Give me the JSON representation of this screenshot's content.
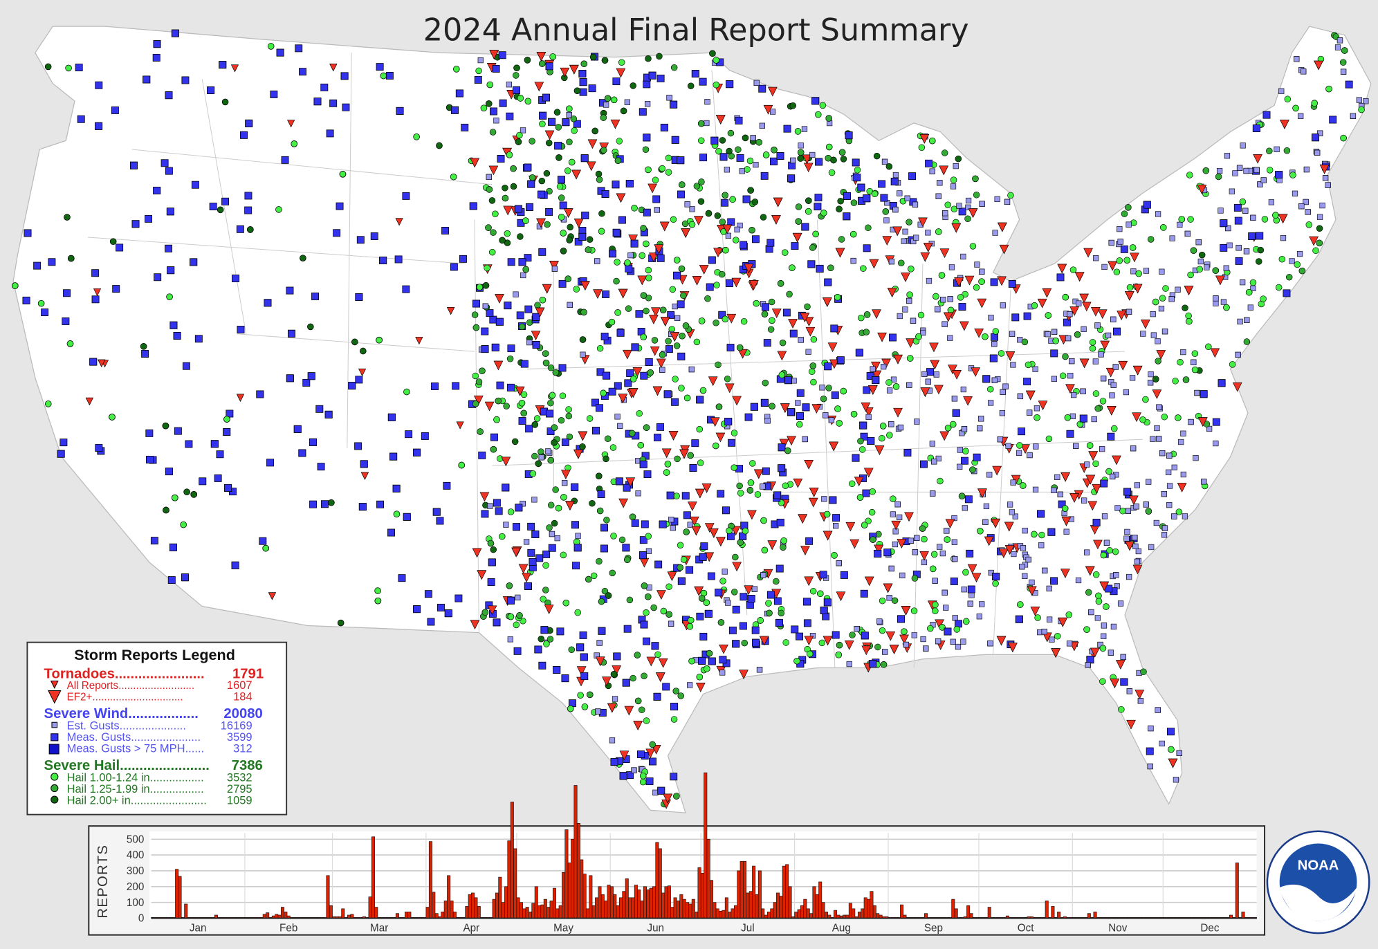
{
  "title": "2024 Annual Final Report Summary",
  "colors": {
    "tornado": "#ee3322",
    "wind_est": "#9999ee",
    "wind_meas": "#3333ee",
    "wind_75": "#1111cc",
    "hail_small": "#44ee44",
    "hail_mid": "#33aa33",
    "hail_big": "#116611",
    "bar": "#dd2200"
  },
  "legend": {
    "title": "Storm Reports Legend",
    "tornadoes": {
      "label": "Tornadoes.......................",
      "total": "1791",
      "items": [
        {
          "label": "All Reports..........................",
          "value": "1607",
          "icon": "small-triangle-icon"
        },
        {
          "label": "EF2+...............................",
          "value": "184",
          "icon": "large-triangle-icon"
        }
      ]
    },
    "wind": {
      "label": "Severe Wind..................",
      "total": "20080",
      "items": [
        {
          "label": "Est. Gusts.....................",
          "value": "16169",
          "icon": "small-square-icon"
        },
        {
          "label": "Meas. Gusts......................",
          "value": "3599",
          "icon": "square-icon"
        },
        {
          "label": "Meas. Gusts > 75 MPH......",
          "value": "312",
          "icon": "large-square-icon"
        }
      ]
    },
    "hail": {
      "label": "Severe Hail.......................",
      "total": "7386",
      "items": [
        {
          "label": "Hail 1.00-1.24 in.................",
          "value": "3532",
          "icon": "light-circle-icon"
        },
        {
          "label": "Hail 1.25-1.99 in.................",
          "value": "2795",
          "icon": "mid-circle-icon"
        },
        {
          "label": "Hail 2.00+ in........................",
          "value": "1059",
          "icon": "dark-circle-icon"
        }
      ]
    }
  },
  "logo_text": "NOAA",
  "chart_data": {
    "type": "bar",
    "title": "",
    "xlabel": "",
    "ylabel": "REPORTS",
    "ylim": [
      0,
      500
    ],
    "yticks": [
      "0",
      "100",
      "200",
      "300",
      "400",
      "500"
    ],
    "months": [
      "Jan",
      "Feb",
      "Mar",
      "Apr",
      "May",
      "Jun",
      "Jul",
      "Aug",
      "Sep",
      "Oct",
      "Nov",
      "Dec"
    ],
    "daily_values_by_month": [
      [
        5,
        5,
        5,
        0,
        0,
        0,
        0,
        0,
        310,
        265,
        5,
        90,
        0,
        0,
        5,
        0,
        0,
        0,
        0,
        0,
        5,
        20,
        5,
        5,
        0,
        0,
        0,
        0,
        0,
        0,
        0
      ],
      [
        0,
        0,
        0,
        0,
        0,
        0,
        25,
        35,
        5,
        15,
        25,
        20,
        70,
        40,
        15,
        0,
        0,
        0,
        0,
        0,
        0,
        0,
        0,
        0,
        5,
        0,
        0,
        270,
        80
      ],
      [
        10,
        10,
        10,
        60,
        5,
        20,
        25,
        0,
        5,
        0,
        10,
        0,
        135,
        515,
        70,
        0,
        0,
        5,
        0,
        0,
        0,
        30,
        5,
        0,
        40,
        40,
        5,
        0,
        0,
        0,
        5
      ],
      [
        70,
        485,
        165,
        30,
        10,
        40,
        110,
        270,
        110,
        40,
        0,
        5,
        0,
        75,
        150,
        160,
        130,
        75,
        5,
        0,
        0,
        5,
        120,
        160,
        260,
        100,
        200,
        490,
        735,
        440
      ],
      [
        130,
        100,
        60,
        70,
        40,
        95,
        200,
        80,
        85,
        120,
        70,
        110,
        190,
        60,
        80,
        290,
        560,
        350,
        500,
        840,
        600,
        370,
        280,
        60,
        270,
        80,
        130,
        200,
        150,
        110,
        210
      ],
      [
        200,
        150,
        80,
        130,
        170,
        250,
        130,
        130,
        210,
        180,
        110,
        200,
        180,
        190,
        200,
        480,
        440,
        160,
        200,
        205,
        70,
        130,
        110,
        150,
        120,
        100,
        90,
        120,
        40,
        320
      ],
      [
        285,
        920,
        500,
        240,
        100,
        60,
        45,
        50,
        130,
        40,
        60,
        80,
        300,
        360,
        360,
        160,
        170,
        330,
        150,
        300,
        60,
        20,
        40,
        60,
        100,
        160,
        140,
        330,
        340,
        200,
        10
      ],
      [
        40,
        55,
        80,
        120,
        60,
        30,
        200,
        150,
        230,
        100,
        40,
        20,
        0,
        50,
        20,
        15,
        20,
        20,
        95,
        60,
        10,
        40,
        60,
        130,
        120,
        170,
        80,
        30,
        20,
        10,
        10
      ],
      [
        5,
        0,
        5,
        0,
        85,
        20,
        0,
        0,
        5,
        0,
        0,
        0,
        30,
        0,
        5,
        0,
        5,
        5,
        0,
        5,
        5,
        120,
        60,
        5,
        5,
        10,
        80,
        30,
        0,
        0
      ],
      [
        0,
        0,
        0,
        70,
        0,
        0,
        0,
        0,
        0,
        15,
        5,
        0,
        0,
        0,
        0,
        0,
        10,
        10,
        0,
        5,
        0,
        0,
        110,
        5,
        75,
        0,
        40,
        0,
        10,
        0,
        0
      ],
      [
        0,
        5,
        0,
        0,
        0,
        30,
        0,
        40,
        5,
        0,
        0,
        0,
        0,
        0,
        0,
        0,
        0,
        0,
        0,
        0,
        0,
        0,
        0,
        0,
        0,
        0,
        5,
        0,
        0,
        0
      ],
      [
        0,
        0,
        0,
        0,
        5,
        0,
        5,
        0,
        0,
        5,
        0,
        0,
        0,
        0,
        0,
        0,
        0,
        0,
        0,
        0,
        0,
        5,
        20,
        5,
        350,
        5,
        40,
        0,
        0,
        0,
        0
      ]
    ],
    "grid": true,
    "legend": "none"
  }
}
